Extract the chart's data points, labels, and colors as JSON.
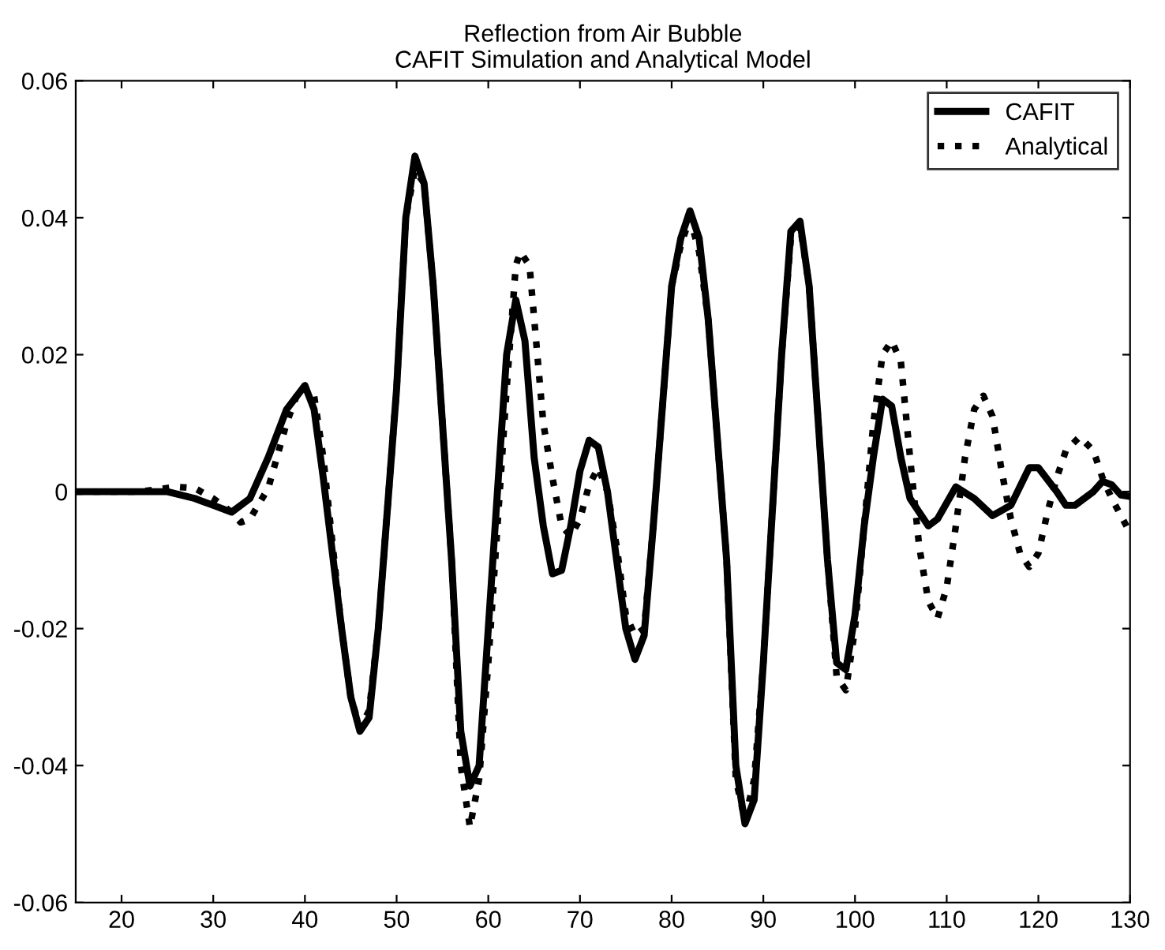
{
  "chart_data": {
    "type": "line",
    "title": "Reflection from Air Bubble\nCAFIT Simulation and Analytical Model",
    "xlim": [
      15,
      130
    ],
    "xticks": [
      20,
      30,
      40,
      50,
      60,
      70,
      80,
      90,
      100,
      110,
      120,
      130
    ],
    "ylim": [
      -0.06,
      0.06
    ],
    "yticks": [
      {
        "value": -0.06,
        "label": "-0.06"
      },
      {
        "value": -0.04,
        "label": "-0.04"
      },
      {
        "value": -0.02,
        "label": "-0.02"
      },
      {
        "value": 0,
        "label": "0"
      },
      {
        "value": 0.02,
        "label": "0.02"
      },
      {
        "value": 0.04,
        "label": "0.04"
      },
      {
        "value": 0.06,
        "label": "0.06"
      }
    ],
    "grid": false,
    "legend": "top right",
    "marker": "none",
    "series": [
      {
        "name": "CAFIT",
        "color": "#000000",
        "line_style": "solid",
        "x": [
          15,
          20,
          25,
          28,
          30,
          32,
          34,
          36,
          38,
          40,
          41,
          42,
          44,
          45,
          46,
          47,
          48,
          50,
          51,
          52,
          53,
          54,
          56,
          57,
          58,
          59,
          60,
          62,
          63,
          64,
          65,
          66,
          67,
          68,
          69,
          70,
          71,
          72,
          73,
          74,
          75,
          76,
          77,
          78,
          80,
          81,
          82,
          83,
          84,
          86,
          87,
          88,
          89,
          90,
          92,
          93,
          94,
          95,
          96,
          97,
          98,
          99,
          100,
          101,
          102,
          103,
          104,
          105,
          106,
          108,
          109,
          111,
          113,
          115,
          117,
          119,
          120,
          122,
          123,
          124,
          126,
          127,
          128,
          129,
          130
        ],
        "values": [
          0,
          0,
          0,
          -0.001,
          -0.002,
          -0.003,
          -0.001,
          0.005,
          0.012,
          0.0155,
          0.012,
          0.002,
          -0.02,
          -0.03,
          -0.035,
          -0.033,
          -0.02,
          0.015,
          0.04,
          0.049,
          0.045,
          0.03,
          -0.01,
          -0.035,
          -0.043,
          -0.04,
          -0.02,
          0.02,
          0.028,
          0.022,
          0.005,
          -0.005,
          -0.012,
          -0.0115,
          -0.005,
          0.003,
          0.0075,
          0.0065,
          0.0,
          -0.01,
          -0.02,
          -0.0245,
          -0.021,
          -0.005,
          0.03,
          0.037,
          0.041,
          0.037,
          0.025,
          -0.01,
          -0.04,
          -0.0485,
          -0.045,
          -0.025,
          0.02,
          0.038,
          0.0395,
          0.03,
          0.01,
          -0.01,
          -0.025,
          -0.026,
          -0.018,
          -0.005,
          0.005,
          0.0135,
          0.0125,
          0.005,
          -0.001,
          -0.005,
          -0.004,
          0.0007,
          -0.001,
          -0.0035,
          -0.002,
          0.0035,
          0.0035,
          0.0,
          -0.002,
          -0.002,
          0.0,
          0.0015,
          0.001,
          -0.0005,
          -0.0007
        ]
      },
      {
        "name": "Analytical",
        "color": "#000000",
        "line_style": "dotted",
        "x": [
          15,
          22,
          26,
          28,
          30,
          32,
          33,
          34,
          36,
          38,
          39.5,
          41,
          42,
          44,
          45,
          46,
          47,
          48,
          50,
          51,
          52,
          53,
          54,
          56,
          57,
          58,
          59,
          60,
          62,
          63,
          63.5,
          64.5,
          66,
          67,
          68,
          69,
          70,
          71,
          72,
          73,
          74,
          75,
          76,
          77,
          78,
          80,
          81,
          82,
          83,
          84,
          86,
          87,
          88,
          89,
          90,
          92,
          93,
          94,
          95,
          96,
          97,
          98,
          99,
          100,
          101,
          102,
          103,
          104,
          105,
          106,
          107,
          108,
          109,
          110,
          111,
          112,
          113,
          114,
          115,
          116,
          117,
          118,
          119,
          120,
          121,
          122,
          123,
          124.5,
          126,
          127,
          128,
          130
        ],
        "values": [
          0,
          0,
          0.0007,
          0.0005,
          -0.001,
          -0.003,
          -0.0045,
          -0.004,
          0.0005,
          0.01,
          0.0155,
          0.014,
          0.005,
          -0.02,
          -0.03,
          -0.0345,
          -0.032,
          -0.02,
          0.015,
          0.04,
          0.047,
          0.045,
          0.03,
          -0.01,
          -0.04,
          -0.049,
          -0.042,
          -0.025,
          0.015,
          0.033,
          0.035,
          0.033,
          0.01,
          0.002,
          -0.005,
          -0.0065,
          -0.004,
          0.001,
          0.0035,
          0.0,
          -0.008,
          -0.018,
          -0.021,
          -0.02,
          -0.005,
          0.03,
          0.036,
          0.04,
          0.035,
          0.025,
          -0.01,
          -0.042,
          -0.048,
          -0.042,
          -0.025,
          0.02,
          0.037,
          0.039,
          0.03,
          0.01,
          -0.01,
          -0.027,
          -0.029,
          -0.02,
          -0.005,
          0.01,
          0.02,
          0.022,
          0.019,
          0.005,
          -0.008,
          -0.016,
          -0.0185,
          -0.014,
          -0.005,
          0.005,
          0.012,
          0.014,
          0.011,
          0.003,
          -0.004,
          -0.009,
          -0.011,
          -0.009,
          -0.003,
          0.002,
          0.006,
          0.008,
          0.006,
          0.002,
          -0.001,
          -0.006
        ]
      }
    ]
  }
}
